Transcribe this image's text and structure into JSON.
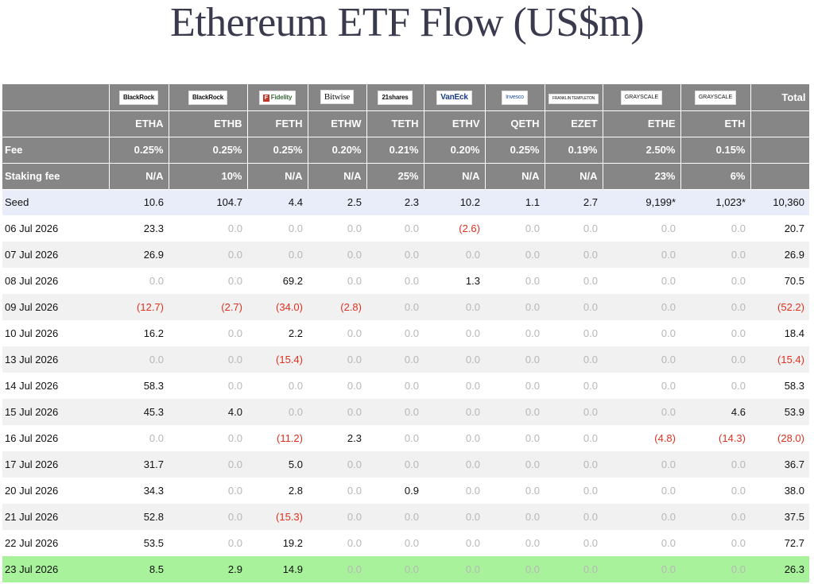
{
  "title": "Ethereum ETF Flow (US$m)",
  "issuers": [
    "BlackRock",
    "BlackRock",
    "Fidelity",
    "Bitwise",
    "21shares",
    "VanEck",
    "Invesco",
    "FRANKLIN TEMPLETON",
    "GRAYSCALE",
    "GRAYSCALE"
  ],
  "total_label": "Total",
  "tickers": [
    "ETHA",
    "ETHB",
    "FETH",
    "ETHW",
    "TETH",
    "ETHV",
    "QETH",
    "EZET",
    "ETHE",
    "ETH"
  ],
  "fee_label": "Fee",
  "fees": [
    "0.25%",
    "0.25%",
    "0.25%",
    "0.20%",
    "0.21%",
    "0.20%",
    "0.25%",
    "0.19%",
    "2.50%",
    "0.15%"
  ],
  "staking_label": "Staking fee",
  "staking": [
    "N/A",
    "10%",
    "N/A",
    "N/A",
    "25%",
    "N/A",
    "N/A",
    "N/A",
    "23%",
    "6%"
  ],
  "seed": {
    "label": "Seed",
    "values": [
      "10.6",
      "104.7",
      "4.4",
      "2.5",
      "2.3",
      "10.2",
      "1.1",
      "2.7",
      "9,199*",
      "1,023*"
    ],
    "total": "10,360"
  },
  "rows": [
    {
      "date": "06 Jul 2026",
      "values": [
        "23.3",
        "0.0",
        "0.0",
        "0.0",
        "0.0",
        "(2.6)",
        "0.0",
        "0.0",
        "0.0",
        "0.0"
      ],
      "total": "20.7"
    },
    {
      "date": "07 Jul 2026",
      "values": [
        "26.9",
        "0.0",
        "0.0",
        "0.0",
        "0.0",
        "0.0",
        "0.0",
        "0.0",
        "0.0",
        "0.0"
      ],
      "total": "26.9"
    },
    {
      "date": "08 Jul 2026",
      "values": [
        "0.0",
        "0.0",
        "69.2",
        "0.0",
        "0.0",
        "1.3",
        "0.0",
        "0.0",
        "0.0",
        "0.0"
      ],
      "total": "70.5"
    },
    {
      "date": "09 Jul 2026",
      "values": [
        "(12.7)",
        "(2.7)",
        "(34.0)",
        "(2.8)",
        "0.0",
        "0.0",
        "0.0",
        "0.0",
        "0.0",
        "0.0"
      ],
      "total": "(52.2)"
    },
    {
      "date": "10 Jul 2026",
      "values": [
        "16.2",
        "0.0",
        "2.2",
        "0.0",
        "0.0",
        "0.0",
        "0.0",
        "0.0",
        "0.0",
        "0.0"
      ],
      "total": "18.4"
    },
    {
      "date": "13 Jul 2026",
      "values": [
        "0.0",
        "0.0",
        "(15.4)",
        "0.0",
        "0.0",
        "0.0",
        "0.0",
        "0.0",
        "0.0",
        "0.0"
      ],
      "total": "(15.4)"
    },
    {
      "date": "14 Jul 2026",
      "values": [
        "58.3",
        "0.0",
        "0.0",
        "0.0",
        "0.0",
        "0.0",
        "0.0",
        "0.0",
        "0.0",
        "0.0"
      ],
      "total": "58.3"
    },
    {
      "date": "15 Jul 2026",
      "values": [
        "45.3",
        "4.0",
        "0.0",
        "0.0",
        "0.0",
        "0.0",
        "0.0",
        "0.0",
        "0.0",
        "4.6"
      ],
      "total": "53.9"
    },
    {
      "date": "16 Jul 2026",
      "values": [
        "0.0",
        "0.0",
        "(11.2)",
        "2.3",
        "0.0",
        "0.0",
        "0.0",
        "0.0",
        "(4.8)",
        "(14.3)"
      ],
      "total": "(28.0)"
    },
    {
      "date": "17 Jul 2026",
      "values": [
        "31.7",
        "0.0",
        "5.0",
        "0.0",
        "0.0",
        "0.0",
        "0.0",
        "0.0",
        "0.0",
        "0.0"
      ],
      "total": "36.7"
    },
    {
      "date": "20 Jul 2026",
      "values": [
        "34.3",
        "0.0",
        "2.8",
        "0.0",
        "0.9",
        "0.0",
        "0.0",
        "0.0",
        "0.0",
        "0.0"
      ],
      "total": "38.0"
    },
    {
      "date": "21 Jul 2026",
      "values": [
        "52.8",
        "0.0",
        "(15.3)",
        "0.0",
        "0.0",
        "0.0",
        "0.0",
        "0.0",
        "0.0",
        "0.0"
      ],
      "total": "37.5"
    },
    {
      "date": "22 Jul 2026",
      "values": [
        "53.5",
        "0.0",
        "19.2",
        "0.0",
        "0.0",
        "0.0",
        "0.0",
        "0.0",
        "0.0",
        "0.0"
      ],
      "total": "72.7"
    },
    {
      "date": "23 Jul 2026",
      "values": [
        "8.5",
        "2.9",
        "14.9",
        "0.0",
        "0.0",
        "0.0",
        "0.0",
        "0.0",
        "0.0",
        "0.0"
      ],
      "total": "26.3"
    }
  ],
  "colors": {
    "header_bg": "#868686",
    "seed_bg": "#e9ecf9",
    "highlight_bg": "#a8f29b",
    "negative": "#e0301e",
    "zero": "#b7b7b7"
  }
}
